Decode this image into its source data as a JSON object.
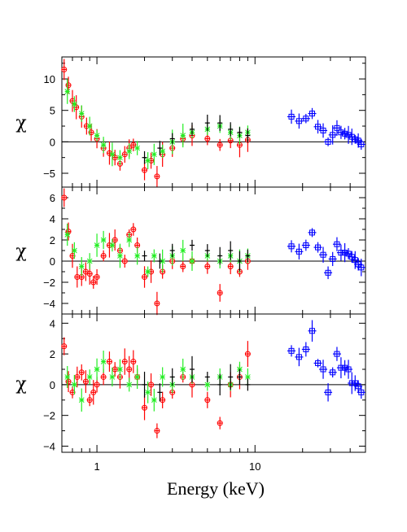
{
  "chart_data": {
    "type": "scatter",
    "xlabel": "Energy (keV)",
    "xscale": "log",
    "xlim": [
      0.6,
      50
    ],
    "x_ticks": [
      1,
      10
    ],
    "x_tick_labels": [
      "1",
      "10"
    ],
    "colors": {
      "black": "#000000",
      "red": "#ff0000",
      "green": "#22ee22",
      "blue": "#0000ff"
    },
    "panels": [
      {
        "ylabel": "χ",
        "ylim": [
          -7.2,
          13.5
        ],
        "y_ticks": [
          -5,
          0,
          5,
          10
        ],
        "y_tick_labels": [
          "−5",
          "0",
          "5",
          "10"
        ],
        "series": [
          {
            "color": "blue",
            "marker": "square",
            "points": [
              [
                17,
                4.0
              ],
              [
                19,
                3.3
              ],
              [
                21,
                3.7
              ],
              [
                23,
                4.5
              ],
              [
                25,
                2.4
              ],
              [
                27,
                1.8
              ],
              [
                29,
                0.0
              ],
              [
                31,
                1.1
              ],
              [
                33,
                2.2
              ],
              [
                35,
                1.5
              ],
              [
                37,
                1.3
              ],
              [
                39,
                1.1
              ],
              [
                41,
                0.8
              ],
              [
                43,
                0.4
              ],
              [
                45,
                0.2
              ],
              [
                47,
                -0.4
              ]
            ]
          },
          {
            "color": "red",
            "marker": "circle",
            "points": [
              [
                0.62,
                11.5
              ],
              [
                0.66,
                9.0
              ],
              [
                0.7,
                6.5
              ],
              [
                0.74,
                5.5
              ],
              [
                0.8,
                4.0
              ],
              [
                0.86,
                2.5
              ],
              [
                0.92,
                1.5
              ],
              [
                1.0,
                0.5
              ],
              [
                1.1,
                -1.0
              ],
              [
                1.2,
                -1.8
              ],
              [
                1.3,
                -2.5
              ],
              [
                1.4,
                -3.5
              ],
              [
                1.5,
                -2.0
              ],
              [
                1.6,
                -1.0
              ],
              [
                1.7,
                -0.5
              ],
              [
                2.0,
                -4.5
              ],
              [
                2.2,
                -3.0
              ],
              [
                2.4,
                -5.5
              ],
              [
                2.6,
                -2.0
              ],
              [
                3.0,
                -1.0
              ],
              [
                3.5,
                0.5
              ],
              [
                4.0,
                1.0
              ],
              [
                5.0,
                0.5
              ],
              [
                6.0,
                -0.5
              ],
              [
                7.0,
                0.2
              ],
              [
                8.0,
                -0.5
              ],
              [
                9.0,
                0.3
              ]
            ]
          },
          {
            "color": "green",
            "marker": "cross",
            "points": [
              [
                0.65,
                8.0
              ],
              [
                0.72,
                6.0
              ],
              [
                0.8,
                4.5
              ],
              [
                0.9,
                2.5
              ],
              [
                1.0,
                1.0
              ],
              [
                1.1,
                -0.5
              ],
              [
                1.25,
                -2.0
              ],
              [
                1.4,
                -2.5
              ],
              [
                1.6,
                -1.5
              ],
              [
                1.8,
                -1.0
              ],
              [
                2.1,
                -3.0
              ],
              [
                2.3,
                -2.0
              ],
              [
                2.6,
                -1.5
              ],
              [
                3.0,
                0.0
              ],
              [
                3.5,
                1.0
              ],
              [
                4.0,
                1.5
              ],
              [
                5.0,
                2.0
              ],
              [
                6.0,
                2.5
              ],
              [
                7.0,
                1.5
              ],
              [
                8.0,
                1.0
              ],
              [
                9.0,
                1.5
              ]
            ]
          },
          {
            "color": "black",
            "marker": "none",
            "points": [
              [
                2.0,
                -2.5
              ],
              [
                2.5,
                -1.0
              ],
              [
                3.0,
                0.5
              ],
              [
                4.0,
                2.0
              ],
              [
                5.0,
                3.0
              ],
              [
                6.0,
                3.0
              ],
              [
                7.0,
                2.0
              ],
              [
                8.0,
                1.5
              ],
              [
                9.0,
                1.0
              ]
            ]
          }
        ]
      },
      {
        "ylabel": "χ",
        "ylim": [
          -5.0,
          7.0
        ],
        "y_ticks": [
          -4,
          -2,
          0,
          2,
          4,
          6
        ],
        "y_tick_labels": [
          "−4",
          "−2",
          "0",
          "2",
          "4",
          "6"
        ],
        "series": [
          {
            "color": "blue",
            "marker": "square",
            "points": [
              [
                17,
                1.4
              ],
              [
                19,
                0.9
              ],
              [
                21,
                1.5
              ],
              [
                23,
                2.7
              ],
              [
                25,
                1.3
              ],
              [
                27,
                0.6
              ],
              [
                29,
                -1.1
              ],
              [
                31,
                0.2
              ],
              [
                33,
                1.6
              ],
              [
                35,
                0.8
              ],
              [
                37,
                0.8
              ],
              [
                39,
                0.7
              ],
              [
                41,
                0.4
              ],
              [
                43,
                0.1
              ],
              [
                45,
                -0.3
              ],
              [
                47,
                -0.6
              ]
            ]
          },
          {
            "color": "red",
            "marker": "circle",
            "points": [
              [
                0.62,
                6.0
              ],
              [
                0.66,
                2.8
              ],
              [
                0.7,
                0.5
              ],
              [
                0.75,
                -1.5
              ],
              [
                0.8,
                -1.5
              ],
              [
                0.85,
                -1.0
              ],
              [
                0.9,
                -1.2
              ],
              [
                0.95,
                -2.0
              ],
              [
                1.0,
                -1.5
              ],
              [
                1.1,
                0.5
              ],
              [
                1.2,
                1.5
              ],
              [
                1.3,
                2.0
              ],
              [
                1.4,
                1.0
              ],
              [
                1.5,
                0.0
              ],
              [
                1.6,
                2.5
              ],
              [
                1.7,
                3.0
              ],
              [
                1.8,
                1.5
              ],
              [
                2.0,
                -1.5
              ],
              [
                2.2,
                -1.0
              ],
              [
                2.4,
                -4.0
              ],
              [
                2.6,
                -1.0
              ],
              [
                3.0,
                0.0
              ],
              [
                3.5,
                -0.5
              ],
              [
                4.0,
                0.0
              ],
              [
                5.0,
                -0.5
              ],
              [
                6.0,
                -3.0
              ],
              [
                7.0,
                -0.5
              ],
              [
                8.0,
                -1.0
              ],
              [
                9.0,
                0.0
              ]
            ]
          },
          {
            "color": "green",
            "marker": "cross",
            "points": [
              [
                0.65,
                2.5
              ],
              [
                0.72,
                1.0
              ],
              [
                0.8,
                -0.5
              ],
              [
                0.9,
                0.0
              ],
              [
                1.0,
                1.5
              ],
              [
                1.1,
                2.0
              ],
              [
                1.25,
                1.5
              ],
              [
                1.4,
                0.5
              ],
              [
                1.6,
                2.0
              ],
              [
                1.8,
                0.5
              ],
              [
                2.1,
                -1.0
              ],
              [
                2.3,
                0.5
              ],
              [
                2.6,
                0.0
              ],
              [
                3.0,
                0.5
              ],
              [
                3.5,
                1.0
              ],
              [
                4.0,
                0.0
              ],
              [
                5.0,
                0.5
              ],
              [
                6.0,
                0.0
              ],
              [
                7.0,
                0.5
              ],
              [
                8.0,
                0.0
              ],
              [
                9.0,
                0.5
              ]
            ]
          },
          {
            "color": "black",
            "marker": "none",
            "points": [
              [
                2.0,
                0.5
              ],
              [
                2.5,
                0.0
              ],
              [
                3.0,
                1.0
              ],
              [
                4.0,
                1.5
              ],
              [
                5.0,
                1.0
              ],
              [
                6.0,
                0.5
              ],
              [
                7.0,
                1.0
              ],
              [
                8.0,
                0.0
              ],
              [
                9.0,
                0.5
              ]
            ]
          }
        ]
      },
      {
        "ylabel": "χ",
        "ylim": [
          -4.4,
          4.6
        ],
        "y_ticks": [
          -4,
          -2,
          0,
          2,
          4
        ],
        "y_tick_labels": [
          "−4",
          "−2",
          "0",
          "2",
          "4"
        ],
        "series": [
          {
            "color": "blue",
            "marker": "square",
            "points": [
              [
                17,
                2.2
              ],
              [
                19,
                1.8
              ],
              [
                21,
                2.3
              ],
              [
                23,
                3.5
              ],
              [
                25,
                1.4
              ],
              [
                27,
                1.0
              ],
              [
                29,
                -0.5
              ],
              [
                31,
                0.8
              ],
              [
                33,
                2.0
              ],
              [
                35,
                1.1
              ],
              [
                37,
                1.1
              ],
              [
                39,
                1.0
              ],
              [
                41,
                0.1
              ],
              [
                43,
                0.1
              ],
              [
                45,
                -0.1
              ],
              [
                47,
                -0.5
              ]
            ]
          },
          {
            "color": "red",
            "marker": "circle",
            "points": [
              [
                0.62,
                2.5
              ],
              [
                0.66,
                0.2
              ],
              [
                0.7,
                -0.5
              ],
              [
                0.75,
                0.5
              ],
              [
                0.8,
                0.8
              ],
              [
                0.85,
                0.2
              ],
              [
                0.9,
                -1.0
              ],
              [
                0.95,
                -0.5
              ],
              [
                1.0,
                0.0
              ],
              [
                1.1,
                0.5
              ],
              [
                1.2,
                1.5
              ],
              [
                1.3,
                1.0
              ],
              [
                1.4,
                0.5
              ],
              [
                1.5,
                1.5
              ],
              [
                1.6,
                1.0
              ],
              [
                1.7,
                1.5
              ],
              [
                1.8,
                0.5
              ],
              [
                2.0,
                -1.5
              ],
              [
                2.2,
                0.0
              ],
              [
                2.4,
                -3.0
              ],
              [
                2.6,
                -1.0
              ],
              [
                3.0,
                -0.5
              ],
              [
                3.5,
                0.5
              ],
              [
                4.0,
                0.0
              ],
              [
                5.0,
                -1.0
              ],
              [
                6.0,
                -2.5
              ],
              [
                7.0,
                0.0
              ],
              [
                8.0,
                0.5
              ],
              [
                9.0,
                2.0
              ]
            ]
          },
          {
            "color": "green",
            "marker": "cross",
            "points": [
              [
                0.65,
                0.5
              ],
              [
                0.72,
                0.0
              ],
              [
                0.8,
                -1.0
              ],
              [
                0.9,
                0.5
              ],
              [
                1.0,
                1.0
              ],
              [
                1.1,
                1.5
              ],
              [
                1.25,
                0.5
              ],
              [
                1.4,
                1.0
              ],
              [
                1.6,
                0.0
              ],
              [
                1.8,
                0.5
              ],
              [
                2.1,
                -0.5
              ],
              [
                2.3,
                -1.0
              ],
              [
                2.6,
                0.5
              ],
              [
                3.0,
                0.0
              ],
              [
                3.5,
                1.0
              ],
              [
                4.0,
                0.5
              ],
              [
                5.0,
                0.0
              ],
              [
                6.0,
                0.5
              ],
              [
                7.0,
                0.0
              ],
              [
                8.0,
                1.0
              ],
              [
                9.0,
                0.5
              ]
            ]
          },
          {
            "color": "black",
            "marker": "none",
            "points": [
              [
                2.0,
                0.0
              ],
              [
                2.5,
                -0.5
              ],
              [
                3.0,
                0.5
              ],
              [
                4.0,
                1.0
              ],
              [
                5.0,
                0.5
              ],
              [
                6.0,
                0.0
              ],
              [
                7.0,
                0.5
              ],
              [
                8.0,
                0.5
              ],
              [
                9.0,
                0.0
              ]
            ]
          }
        ]
      }
    ]
  }
}
